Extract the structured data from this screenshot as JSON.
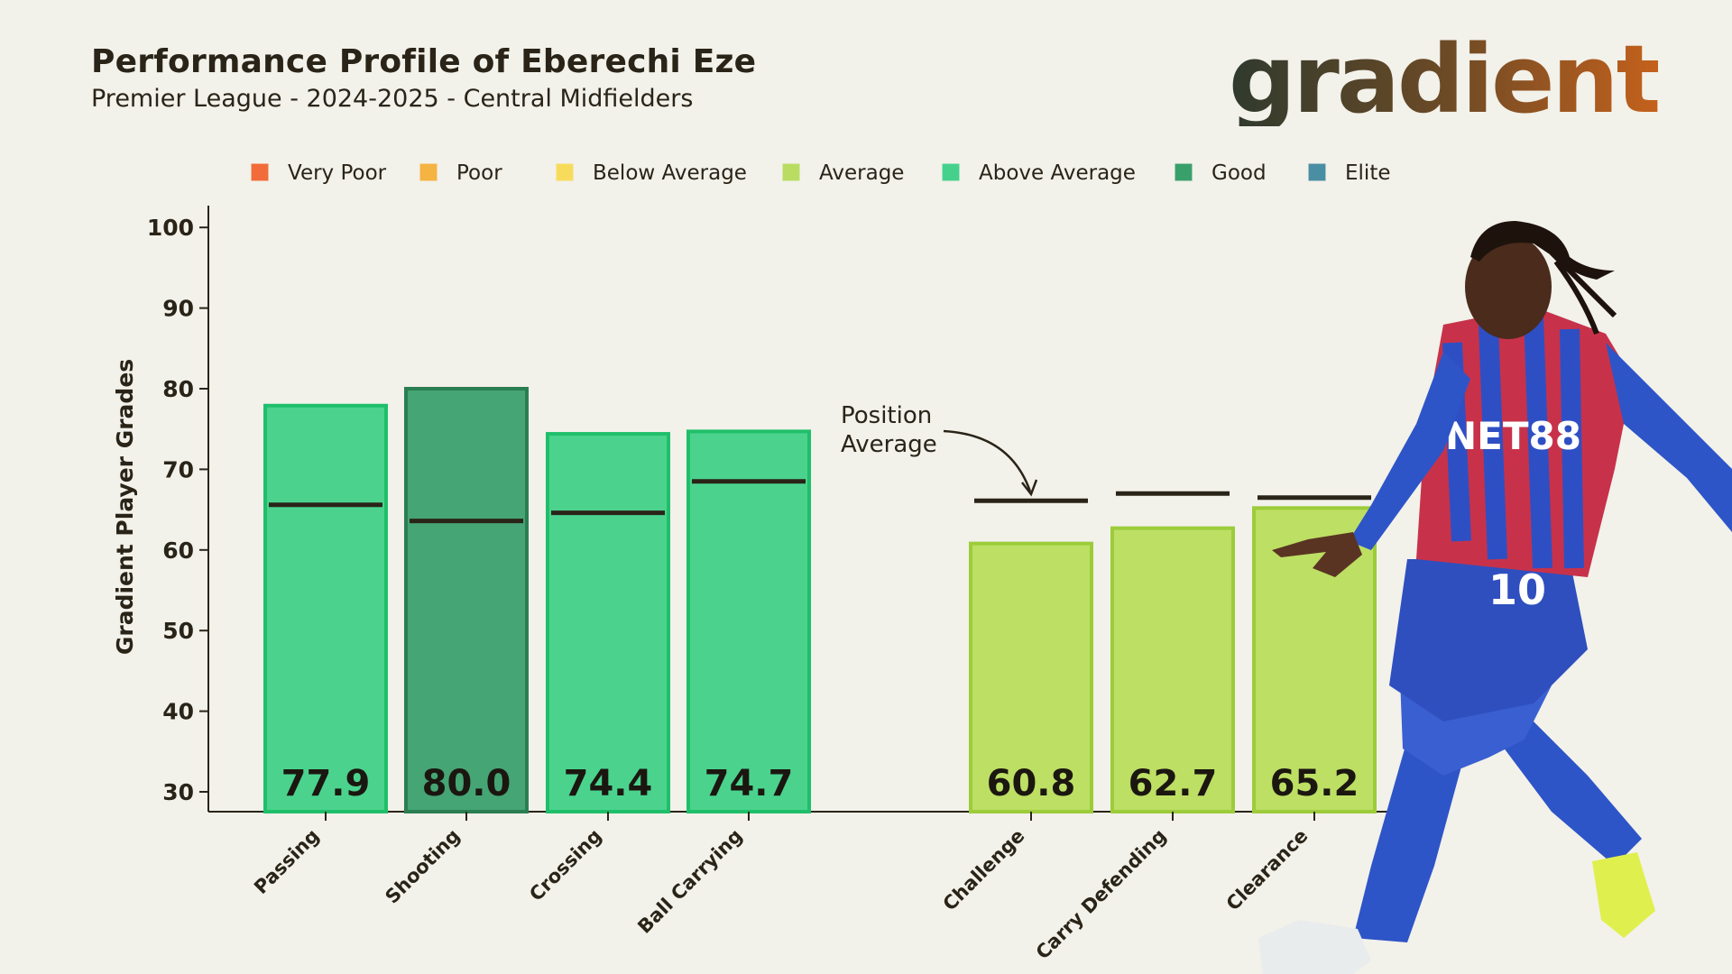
{
  "header": {
    "title": "Performance Profile of Eberechi Eze",
    "subtitle": "Premier League - 2024-2025 - Central Midfielders",
    "logo_text": "gradient"
  },
  "photo": {
    "description_icon": "player-photo",
    "shirt_sponsor": "NET88",
    "shirt_number": "10"
  },
  "chart_data": {
    "type": "bar",
    "ylabel": "Gradient Player Grades",
    "ylim": [
      30,
      100
    ],
    "yticks": [
      30,
      40,
      50,
      60,
      70,
      80,
      90,
      100
    ],
    "annotation": {
      "line1": "Position",
      "line2": "Average"
    },
    "legend": [
      {
        "label": "Very Poor",
        "color": "#f26b3a"
      },
      {
        "label": "Poor",
        "color": "#f5b342"
      },
      {
        "label": "Below Average",
        "color": "#f7dc5c"
      },
      {
        "label": "Average",
        "color": "#b9dd62"
      },
      {
        "label": "Above Average",
        "color": "#45d18c"
      },
      {
        "label": "Good",
        "color": "#3aa06b"
      },
      {
        "label": "Elite",
        "color": "#4a8ea3"
      }
    ],
    "categories": [
      "Passing",
      "Shooting",
      "Crossing",
      "Ball Carrying",
      "Challenge",
      "Carry Defending",
      "Clearance"
    ],
    "values": [
      77.9,
      80.0,
      74.4,
      74.7,
      60.8,
      62.7,
      65.2
    ],
    "value_labels": [
      "77.9",
      "80.0",
      "74.4",
      "74.7",
      "60.8",
      "62.7",
      "65.2"
    ],
    "position_average": [
      65.6,
      63.6,
      64.6,
      68.5,
      66.1,
      67.0,
      66.5
    ],
    "grade": [
      "Above Average",
      "Good",
      "Above Average",
      "Above Average",
      "Average",
      "Average",
      "Average"
    ],
    "colors": {
      "Above Average": {
        "fill": "#4bd38e",
        "stroke": "#1fbf6a"
      },
      "Good": {
        "fill": "#45a574",
        "stroke": "#2b7e52"
      },
      "Average": {
        "fill": "#bddf64",
        "stroke": "#9ccc3a"
      }
    }
  }
}
